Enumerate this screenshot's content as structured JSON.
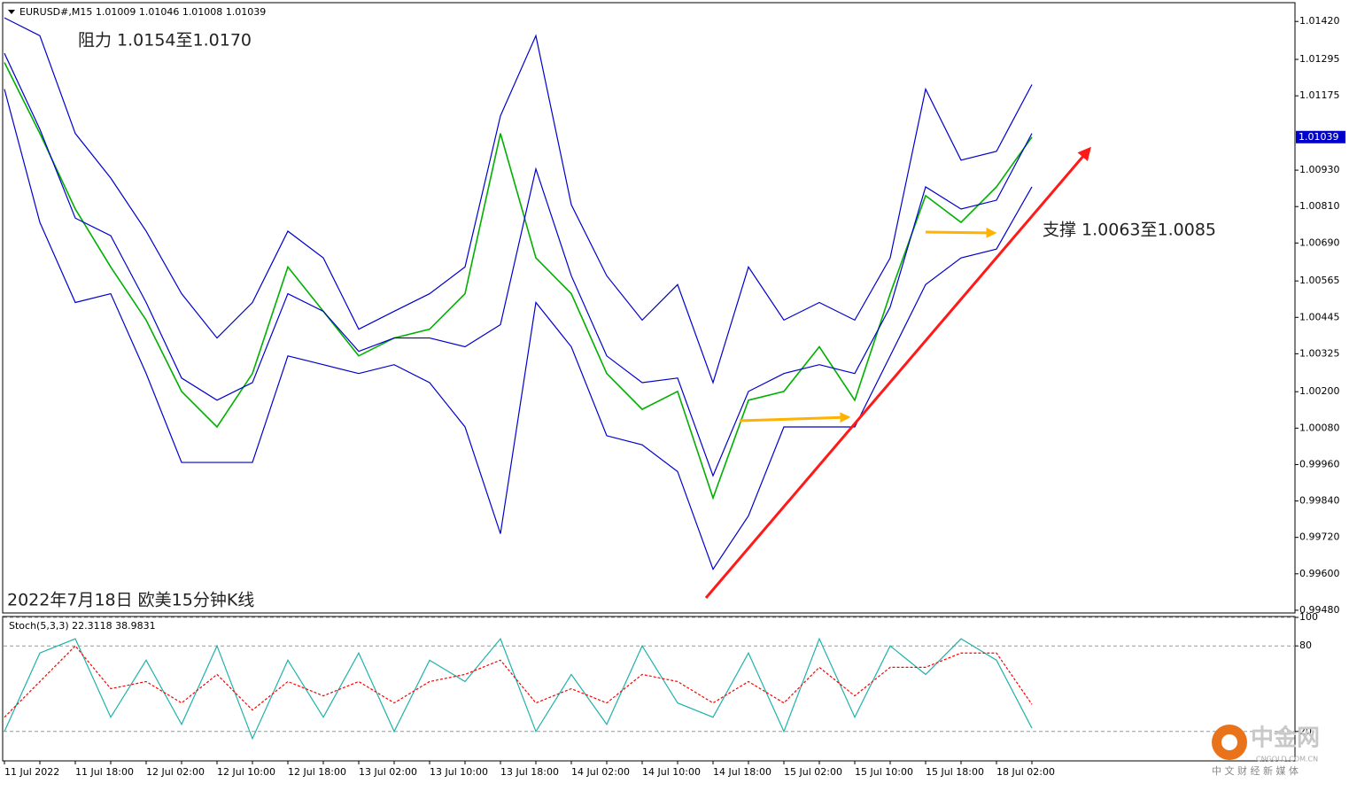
{
  "chart_data": [
    {
      "type": "line",
      "header": "EURUSD#,M15  1.01009 1.01046 1.01008 1.01039",
      "annotations": [
        "阻力 1.0154至1.0170",
        "支撑 1.0063至1.0085",
        "2022年7月18日 欧美15分钟K线"
      ],
      "categories": [
        "11 Jul 2022",
        null,
        "11 Jul 18:00",
        null,
        "12 Jul 02:00",
        null,
        "12 Jul 10:00",
        null,
        "12 Jul 18:00",
        null,
        "13 Jul 02:00",
        null,
        "13 Jul 10:00",
        null,
        "13 Jul 18:00",
        null,
        "14 Jul 02:00",
        null,
        "14 Jul 10:00",
        null,
        "14 Jul 18:00",
        null,
        "15 Jul 02:00",
        null,
        "15 Jul 10:00",
        null,
        "15 Jul 18:00",
        null,
        "18 Jul 02:00",
        null
      ],
      "series": [
        {
          "color": "#00b000",
          "width": 1.6,
          "values": [
            1.01285,
            1.01051,
            1.00802,
            1.00611,
            1.00436,
            1.00201,
            1.00084,
            1.0026,
            1.00611,
            1.00465,
            1.00318,
            1.00377,
            1.00406,
            1.00523,
            1.01051,
            1.00641,
            1.00523,
            1.0026,
            1.00142,
            1.00201,
            0.9985,
            1.00172,
            1.00201,
            1.00348,
            1.00172,
            1.00523,
            1.00846,
            1.00758,
            1.00875,
            1.01039
          ]
        },
        {
          "color": "#0000cc",
          "width": 1.2,
          "values": [
            1.01432,
            1.01373,
            1.01051,
            1.00904,
            1.00729,
            1.00523,
            1.00377,
            1.00494,
            1.00729,
            1.00641,
            1.00406,
            1.00465,
            1.00523,
            1.00611,
            1.01109,
            1.01373,
            1.00816,
            1.00582,
            1.00436,
            1.00553,
            1.0023,
            1.00611,
            1.00436,
            1.00494,
            1.00436,
            1.00641,
            1.01197,
            1.00963,
            1.00992,
            1.01212
          ]
        },
        {
          "color": "#0000cc",
          "width": 1.2,
          "values": [
            1.01315,
            1.01065,
            1.00772,
            1.00714,
            1.00494,
            1.00245,
            1.00172,
            1.0023,
            1.00523,
            1.00465,
            1.00333,
            1.00377,
            1.00377,
            1.00348,
            1.00421,
            1.00934,
            1.00582,
            1.00318,
            1.0023,
            1.00245,
            0.99923,
            1.00201,
            1.0026,
            1.00289,
            1.0026,
            1.00479,
            1.00875,
            1.00802,
            1.00831,
            1.01051
          ]
        },
        {
          "color": "#0000cc",
          "width": 1.2,
          "values": [
            1.01197,
            1.00758,
            1.00494,
            1.00523,
            1.0026,
            0.99967,
            0.99967,
            0.99967,
            1.00318,
            1.00289,
            1.0026,
            1.00289,
            1.0023,
            1.00084,
            0.99732,
            1.00494,
            1.00348,
            1.00055,
            1.00025,
            0.99937,
            0.99615,
            0.99791,
            1.00084,
            1.00084,
            1.00084,
            1.00318,
            1.00553,
            1.00641,
            1.0067,
            1.00875
          ]
        }
      ],
      "last_price": {
        "value": 1.01039,
        "label": "1.01039"
      },
      "ylim": [
        0.99471,
        1.01479
      ],
      "yticks": [
        {
          "value": 1.0142,
          "label": "1.01420"
        },
        {
          "value": 1.01295,
          "label": "1.01295"
        },
        {
          "value": 1.01175,
          "label": "1.01175"
        },
        {
          "value": 1.0093,
          "label": "1.00930"
        },
        {
          "value": 1.0081,
          "label": "1.00810"
        },
        {
          "value": 1.0069,
          "label": "1.00690"
        },
        {
          "value": 1.00565,
          "label": "1.00565"
        },
        {
          "value": 1.00445,
          "label": "1.00445"
        },
        {
          "value": 1.00325,
          "label": "1.00325"
        },
        {
          "value": 1.002,
          "label": "1.00200"
        },
        {
          "value": 1.0008,
          "label": "1.00080"
        },
        {
          "value": 0.9996,
          "label": "0.99960"
        },
        {
          "value": 0.9984,
          "label": "0.99840"
        },
        {
          "value": 0.9972,
          "label": "0.99720"
        },
        {
          "value": 0.996,
          "label": "0.99600"
        },
        {
          "value": 0.9948,
          "label": "0.99480"
        }
      ]
    },
    {
      "type": "line",
      "title": "Stoch(5,3,3) 22.3118 38.9831",
      "series": [
        {
          "color": "#20b2aa",
          "dashed": false,
          "values": [
            20,
            75,
            85,
            30,
            70,
            25,
            80,
            15,
            70,
            30,
            75,
            20,
            70,
            55,
            85,
            20,
            60,
            25,
            80,
            40,
            30,
            75,
            20,
            85,
            30,
            80,
            60,
            85,
            70,
            22.3118
          ]
        },
        {
          "color": "#ff0000",
          "dashed": true,
          "values": [
            30,
            55,
            80,
            50,
            55,
            40,
            60,
            35,
            55,
            45,
            55,
            40,
            55,
            60,
            70,
            40,
            50,
            40,
            60,
            55,
            40,
            55,
            40,
            65,
            45,
            65,
            65,
            75,
            75,
            38.9831
          ]
        }
      ],
      "ylim": [
        0,
        100
      ],
      "yticks": [
        20,
        80,
        100
      ],
      "grid": true
    }
  ],
  "watermark": {
    "brand": "中金网",
    "site": "CNGOLD.COM.CN",
    "slogan": "中 文 财 经 新 媒 体"
  }
}
